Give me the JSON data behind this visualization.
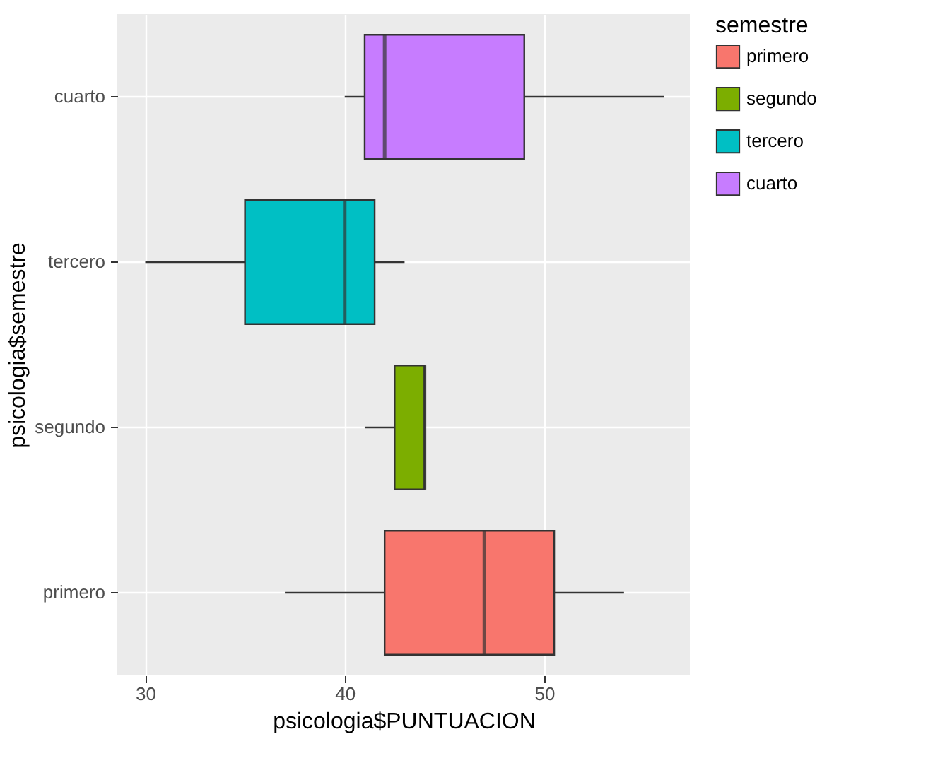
{
  "chart_data": {
    "type": "box",
    "orientation": "horizontal",
    "xlabel": "psicologia$PUNTUACION",
    "ylabel": "psicologia$semestre",
    "legend_title": "semestre",
    "categories": [
      "cuarto",
      "tercero",
      "segundo",
      "primero"
    ],
    "series": [
      {
        "name": "primero",
        "color": "#f8766d",
        "boxes": [
          null,
          null,
          null,
          {
            "low": 37,
            "q1": 42,
            "median": 47,
            "q3": 50.5,
            "high": 54
          }
        ]
      },
      {
        "name": "segundo",
        "color": "#7cae00",
        "boxes": [
          null,
          null,
          {
            "low": 41,
            "q1": 42.5,
            "median": 44,
            "q3": 44,
            "high": 44
          },
          null
        ]
      },
      {
        "name": "tercero",
        "color": "#00bfc4",
        "boxes": [
          null,
          {
            "low": 30,
            "q1": 35,
            "median": 40,
            "q3": 41.5,
            "high": 43
          },
          null,
          null
        ]
      },
      {
        "name": "cuarto",
        "color": "#c77cff",
        "boxes": [
          {
            "low": 40,
            "q1": 41,
            "median": 42,
            "q3": 49,
            "high": 56
          },
          null,
          null,
          null
        ]
      }
    ],
    "xlim": [
      28.6,
      57.3
    ],
    "xticks": [
      30,
      40,
      50
    ],
    "grid": true,
    "legend": "right"
  }
}
